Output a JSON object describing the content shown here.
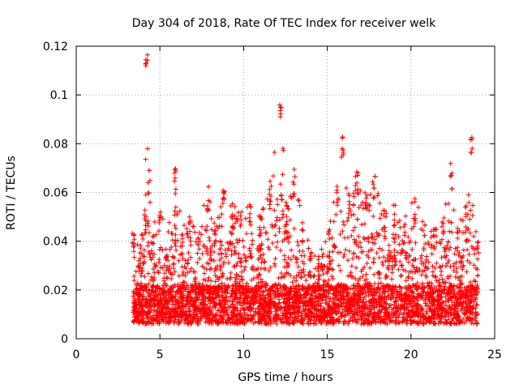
{
  "chart_data": {
    "type": "scatter",
    "title": "Day 304 of 2018, Rate Of TEC Index for receiver welk",
    "xlabel": "GPS time / hours",
    "ylabel": "ROTI / TECUs",
    "xlim": [
      0,
      25
    ],
    "ylim": [
      0,
      0.12
    ],
    "xticks": [
      0,
      5,
      10,
      15,
      20,
      25
    ],
    "yticks": [
      0,
      0.02,
      0.04,
      0.06,
      0.08,
      0.1,
      0.12
    ],
    "xtick_labels": [
      "0",
      "5",
      "10",
      "15",
      "20",
      "25"
    ],
    "ytick_labels": [
      "0",
      "0.02",
      "0.04",
      "0.06",
      "0.08",
      "0.1",
      "0.12"
    ],
    "grid": true,
    "marker": "plus",
    "color": "#ff0000",
    "data_range_x": [
      3.4,
      24.0
    ],
    "envelope": [
      [
        3.4,
        0.045
      ],
      [
        3.8,
        0.04
      ],
      [
        4.1,
        0.055
      ],
      [
        4.2,
        0.117
      ],
      [
        4.35,
        0.07
      ],
      [
        4.6,
        0.045
      ],
      [
        5.0,
        0.058
      ],
      [
        5.4,
        0.04
      ],
      [
        5.9,
        0.071
      ],
      [
        6.3,
        0.046
      ],
      [
        6.8,
        0.05
      ],
      [
        7.3,
        0.045
      ],
      [
        7.9,
        0.063
      ],
      [
        8.3,
        0.048
      ],
      [
        8.8,
        0.062
      ],
      [
        9.3,
        0.056
      ],
      [
        9.8,
        0.052
      ],
      [
        10.4,
        0.058
      ],
      [
        11.0,
        0.053
      ],
      [
        11.6,
        0.066
      ],
      [
        12.2,
        0.099
      ],
      [
        12.6,
        0.055
      ],
      [
        13.0,
        0.07
      ],
      [
        13.5,
        0.05
      ],
      [
        14.0,
        0.038
      ],
      [
        14.5,
        0.034
      ],
      [
        15.1,
        0.045
      ],
      [
        15.6,
        0.065
      ],
      [
        15.9,
        0.083
      ],
      [
        16.3,
        0.06
      ],
      [
        16.8,
        0.069
      ],
      [
        17.3,
        0.06
      ],
      [
        17.8,
        0.069
      ],
      [
        18.4,
        0.053
      ],
      [
        19.0,
        0.055
      ],
      [
        19.6,
        0.05
      ],
      [
        20.2,
        0.058
      ],
      [
        20.8,
        0.048
      ],
      [
        21.4,
        0.045
      ],
      [
        21.9,
        0.05
      ],
      [
        22.4,
        0.072
      ],
      [
        22.8,
        0.048
      ],
      [
        23.3,
        0.055
      ],
      [
        23.6,
        0.085
      ],
      [
        24.0,
        0.04
      ]
    ]
  }
}
